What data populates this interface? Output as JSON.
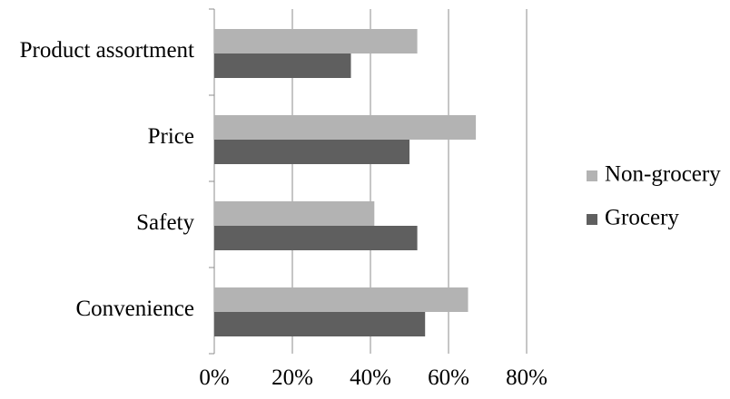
{
  "chart_data": {
    "type": "bar",
    "orientation": "horizontal",
    "categories": [
      "Product assortment",
      "Price",
      "Safety",
      "Convenience"
    ],
    "series": [
      {
        "name": "Non-grocery",
        "color": "#b3b3b3",
        "values": [
          52,
          67,
          41,
          65
        ]
      },
      {
        "name": "Grocery",
        "color": "#5f5f5f",
        "values": [
          35,
          50,
          52,
          54
        ]
      }
    ],
    "x_ticks": [
      "0%",
      "20%",
      "40%",
      "60%",
      "80%"
    ],
    "xlim": [
      0,
      80
    ],
    "x_unit": "%",
    "grid": "vertical",
    "legend_position": "right",
    "title": "",
    "xlabel": "",
    "ylabel": ""
  }
}
